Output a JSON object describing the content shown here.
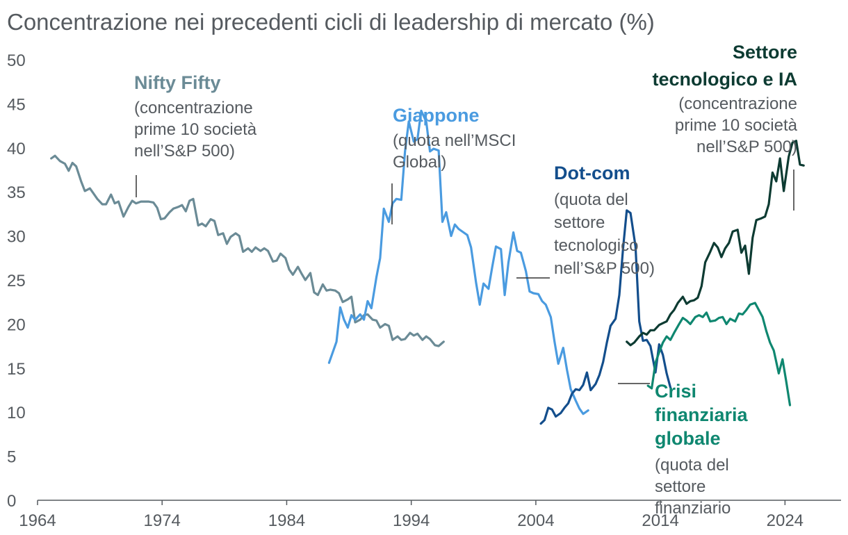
{
  "chart_data": {
    "type": "line",
    "title": "Concentrazione nei precedenti cicli di leadership di mercato (%)",
    "xlabel": "",
    "ylabel": "",
    "xlim": [
      1964,
      2028.5
    ],
    "ylim": [
      0,
      50
    ],
    "x_ticks": [
      "1964",
      "1974",
      "1984",
      "1994",
      "2004",
      "2014",
      "2024"
    ],
    "y_ticks": [
      "0",
      "5",
      "10",
      "15",
      "20",
      "25",
      "30",
      "35",
      "40",
      "45",
      "50"
    ],
    "grid": false,
    "legend": "none",
    "series": [
      {
        "key": "nifty",
        "color": "#6b8b96",
        "points": [
          [
            1965.1,
            38.8
          ],
          [
            1965.4,
            39.1
          ],
          [
            1965.8,
            38.5
          ],
          [
            1966.2,
            38.2
          ],
          [
            1966.5,
            37.4
          ],
          [
            1966.8,
            38.3
          ],
          [
            1967.1,
            37.9
          ],
          [
            1967.5,
            36.2
          ],
          [
            1967.8,
            35.1
          ],
          [
            1968.2,
            35.4
          ],
          [
            1968.5,
            34.8
          ],
          [
            1968.8,
            34.2
          ],
          [
            1969.2,
            33.6
          ],
          [
            1969.5,
            33.6
          ],
          [
            1969.9,
            34.7
          ],
          [
            1970.2,
            33.7
          ],
          [
            1970.5,
            33.9
          ],
          [
            1970.9,
            32.2
          ],
          [
            1971.3,
            33.3
          ],
          [
            1971.6,
            34.0
          ],
          [
            1971.9,
            33.7
          ],
          [
            1972.3,
            33.9
          ],
          [
            1972.6,
            33.9
          ],
          [
            1972.9,
            33.9
          ],
          [
            1973.3,
            33.8
          ],
          [
            1973.6,
            33.2
          ],
          [
            1973.9,
            31.9
          ],
          [
            1974.2,
            32.0
          ],
          [
            1974.6,
            32.7
          ],
          [
            1974.9,
            33.1
          ],
          [
            1975.3,
            33.3
          ],
          [
            1975.6,
            33.5
          ],
          [
            1975.9,
            32.8
          ],
          [
            1976.2,
            34.0
          ],
          [
            1976.5,
            34.2
          ],
          [
            1976.9,
            31.2
          ],
          [
            1977.2,
            31.4
          ],
          [
            1977.5,
            31.1
          ],
          [
            1977.9,
            31.9
          ],
          [
            1978.2,
            31.7
          ],
          [
            1978.5,
            30.1
          ],
          [
            1978.9,
            30.3
          ],
          [
            1979.2,
            29.1
          ],
          [
            1979.5,
            29.9
          ],
          [
            1979.9,
            30.3
          ],
          [
            1980.2,
            30.0
          ],
          [
            1980.5,
            28.2
          ],
          [
            1980.9,
            28.6
          ],
          [
            1981.2,
            28.2
          ],
          [
            1981.5,
            28.7
          ],
          [
            1981.9,
            28.3
          ],
          [
            1982.2,
            28.6
          ],
          [
            1982.5,
            28.3
          ],
          [
            1982.9,
            27.1
          ],
          [
            1983.2,
            27.2
          ],
          [
            1983.5,
            28.0
          ],
          [
            1983.9,
            27.5
          ],
          [
            1984.2,
            26.2
          ],
          [
            1984.5,
            25.6
          ],
          [
            1984.9,
            26.5
          ],
          [
            1985.2,
            25.7
          ],
          [
            1985.5,
            25.0
          ],
          [
            1985.9,
            25.8
          ],
          [
            1986.2,
            23.6
          ],
          [
            1986.5,
            23.3
          ],
          [
            1986.9,
            24.5
          ],
          [
            1987.2,
            23.8
          ],
          [
            1987.5,
            23.9
          ],
          [
            1987.9,
            23.8
          ],
          [
            1988.2,
            23.5
          ],
          [
            1988.5,
            22.5
          ],
          [
            1988.9,
            22.8
          ],
          [
            1989.2,
            23.1
          ],
          [
            1989.5,
            20.2
          ],
          [
            1989.9,
            20.5
          ],
          [
            1990.2,
            21.0
          ],
          [
            1990.5,
            21.1
          ],
          [
            1990.9,
            20.5
          ],
          [
            1991.2,
            20.4
          ],
          [
            1991.5,
            19.6
          ],
          [
            1991.9,
            20.0
          ],
          [
            1992.2,
            19.8
          ],
          [
            1992.5,
            18.2
          ],
          [
            1992.9,
            18.6
          ],
          [
            1993.2,
            18.2
          ],
          [
            1993.5,
            18.3
          ],
          [
            1993.9,
            19.0
          ],
          [
            1994.2,
            18.7
          ],
          [
            1994.5,
            18.9
          ],
          [
            1994.9,
            18.2
          ],
          [
            1995.2,
            18.6
          ],
          [
            1995.5,
            18.3
          ],
          [
            1995.9,
            17.6
          ],
          [
            1996.2,
            17.5
          ],
          [
            1996.6,
            18.0
          ]
        ]
      },
      {
        "key": "giappone",
        "color": "#4a9be0",
        "points": [
          [
            1987.4,
            15.6
          ],
          [
            1988.0,
            18.0
          ],
          [
            1988.3,
            21.9
          ],
          [
            1988.6,
            20.5
          ],
          [
            1988.9,
            19.6
          ],
          [
            1989.2,
            21.0
          ],
          [
            1989.5,
            20.5
          ],
          [
            1989.9,
            21.1
          ],
          [
            1990.2,
            20.5
          ],
          [
            1990.5,
            22.6
          ],
          [
            1990.8,
            21.8
          ],
          [
            1991.2,
            25.3
          ],
          [
            1991.5,
            27.5
          ],
          [
            1991.8,
            33.1
          ],
          [
            1992.2,
            31.6
          ],
          [
            1992.5,
            33.7
          ],
          [
            1992.8,
            34.2
          ],
          [
            1993.2,
            34.1
          ],
          [
            1993.5,
            39.6
          ],
          [
            1993.8,
            43.0
          ],
          [
            1994.2,
            40.7
          ],
          [
            1994.5,
            41.0
          ],
          [
            1994.8,
            44.2
          ],
          [
            1995.2,
            43.0
          ],
          [
            1995.5,
            39.6
          ],
          [
            1995.8,
            39.9
          ],
          [
            1996.2,
            39.7
          ],
          [
            1996.5,
            31.6
          ],
          [
            1996.8,
            32.7
          ],
          [
            1997.2,
            30.0
          ],
          [
            1997.5,
            31.3
          ],
          [
            1997.8,
            30.8
          ],
          [
            1998.2,
            30.4
          ],
          [
            1998.5,
            30.1
          ],
          [
            1998.8,
            28.7
          ],
          [
            1999.2,
            24.7
          ],
          [
            1999.5,
            22.2
          ],
          [
            1999.8,
            24.6
          ],
          [
            2000.2,
            24.0
          ],
          [
            2000.5,
            26.5
          ],
          [
            2000.8,
            28.8
          ],
          [
            2001.2,
            28.5
          ],
          [
            2001.5,
            23.3
          ],
          [
            2001.8,
            27.0
          ],
          [
            2002.2,
            30.4
          ],
          [
            2002.5,
            28.3
          ],
          [
            2002.8,
            28.1
          ],
          [
            2003.2,
            26.0
          ],
          [
            2003.5,
            23.7
          ],
          [
            2003.8,
            23.5
          ],
          [
            2004.2,
            23.4
          ],
          [
            2004.5,
            22.6
          ],
          [
            2004.8,
            22.2
          ],
          [
            2005.2,
            20.8
          ],
          [
            2005.5,
            18.0
          ],
          [
            2005.8,
            15.5
          ],
          [
            2006.2,
            17.3
          ],
          [
            2006.5,
            14.8
          ],
          [
            2006.8,
            12.6
          ],
          [
            2007.2,
            11.3
          ],
          [
            2007.5,
            10.4
          ],
          [
            2007.8,
            9.8
          ],
          [
            2008.2,
            10.2
          ]
        ]
      },
      {
        "key": "dotcom",
        "color": "#134e8c",
        "points": [
          [
            2004.4,
            8.7
          ],
          [
            2004.7,
            9.1
          ],
          [
            2005.0,
            10.5
          ],
          [
            2005.3,
            10.3
          ],
          [
            2005.6,
            9.5
          ],
          [
            2006.0,
            9.9
          ],
          [
            2006.3,
            10.5
          ],
          [
            2006.6,
            11.0
          ],
          [
            2006.9,
            12.1
          ],
          [
            2007.2,
            12.6
          ],
          [
            2007.5,
            12.5
          ],
          [
            2007.8,
            13.1
          ],
          [
            2008.1,
            14.5
          ],
          [
            2008.4,
            12.5
          ],
          [
            2008.8,
            13.2
          ],
          [
            2009.1,
            14.2
          ],
          [
            2009.4,
            15.7
          ],
          [
            2009.7,
            17.9
          ],
          [
            2010.0,
            19.8
          ],
          [
            2010.4,
            20.6
          ],
          [
            2010.7,
            23.3
          ],
          [
            2011.0,
            28.6
          ],
          [
            2011.3,
            32.9
          ],
          [
            2011.6,
            32.6
          ],
          [
            2012.0,
            28.8
          ],
          [
            2012.3,
            20.3
          ],
          [
            2012.6,
            18.1
          ],
          [
            2012.9,
            18.2
          ],
          [
            2013.2,
            17.5
          ],
          [
            2013.6,
            14.5
          ],
          [
            2013.9,
            17.7
          ],
          [
            2014.2,
            16.5
          ],
          [
            2014.5,
            14.4
          ],
          [
            2014.8,
            12.8
          ]
        ]
      },
      {
        "key": "crisi",
        "color": "#0f8770",
        "points": [
          [
            2013.0,
            13.0
          ],
          [
            2013.3,
            12.7
          ],
          [
            2013.6,
            15.6
          ],
          [
            2013.9,
            16.8
          ],
          [
            2014.2,
            17.9
          ],
          [
            2014.5,
            18.6
          ],
          [
            2014.8,
            18.2
          ],
          [
            2015.1,
            19.0
          ],
          [
            2015.5,
            20.0
          ],
          [
            2015.8,
            20.7
          ],
          [
            2016.1,
            20.4
          ],
          [
            2016.4,
            20.0
          ],
          [
            2016.8,
            20.8
          ],
          [
            2017.1,
            21.0
          ],
          [
            2017.4,
            20.8
          ],
          [
            2017.7,
            21.3
          ],
          [
            2018.0,
            20.3
          ],
          [
            2018.4,
            20.4
          ],
          [
            2018.7,
            20.7
          ],
          [
            2019.0,
            20.8
          ],
          [
            2019.3,
            20.0
          ],
          [
            2019.6,
            20.6
          ],
          [
            2020.0,
            20.3
          ],
          [
            2020.3,
            21.2
          ],
          [
            2020.6,
            21.1
          ],
          [
            2020.9,
            21.6
          ],
          [
            2021.2,
            22.2
          ],
          [
            2021.6,
            22.4
          ],
          [
            2021.9,
            21.6
          ],
          [
            2022.2,
            20.8
          ],
          [
            2022.5,
            19.2
          ],
          [
            2022.8,
            17.9
          ],
          [
            2023.1,
            17.0
          ],
          [
            2023.5,
            14.4
          ],
          [
            2023.8,
            16.0
          ],
          [
            2024.1,
            13.5
          ],
          [
            2024.4,
            10.8
          ]
        ]
      },
      {
        "key": "tech",
        "color": "#0d3b32",
        "points": [
          [
            2011.3,
            18.0
          ],
          [
            2011.6,
            17.6
          ],
          [
            2011.9,
            17.9
          ],
          [
            2012.3,
            18.6
          ],
          [
            2012.6,
            19.0
          ],
          [
            2012.9,
            18.8
          ],
          [
            2013.2,
            19.3
          ],
          [
            2013.5,
            19.3
          ],
          [
            2013.9,
            19.9
          ],
          [
            2014.2,
            20.1
          ],
          [
            2014.5,
            20.3
          ],
          [
            2014.8,
            21.1
          ],
          [
            2015.1,
            21.6
          ],
          [
            2015.4,
            22.4
          ],
          [
            2015.8,
            23.1
          ],
          [
            2016.1,
            22.3
          ],
          [
            2016.4,
            22.6
          ],
          [
            2016.7,
            22.7
          ],
          [
            2017.0,
            23.0
          ],
          [
            2017.3,
            24.3
          ],
          [
            2017.6,
            27.0
          ],
          [
            2018.0,
            28.2
          ],
          [
            2018.3,
            29.2
          ],
          [
            2018.6,
            28.7
          ],
          [
            2018.9,
            27.6
          ],
          [
            2019.2,
            28.6
          ],
          [
            2019.5,
            29.2
          ],
          [
            2019.8,
            30.5
          ],
          [
            2020.2,
            30.7
          ],
          [
            2020.5,
            28.1
          ],
          [
            2020.8,
            28.9
          ],
          [
            2021.1,
            25.7
          ],
          [
            2021.4,
            29.8
          ],
          [
            2021.7,
            31.8
          ],
          [
            2022.1,
            32.0
          ],
          [
            2022.4,
            32.2
          ],
          [
            2022.7,
            33.6
          ],
          [
            2023.0,
            37.2
          ],
          [
            2023.3,
            36.2
          ],
          [
            2023.6,
            38.8
          ],
          [
            2023.9,
            35.1
          ],
          [
            2024.3,
            39.0
          ],
          [
            2024.6,
            40.6
          ],
          [
            2024.9,
            40.8
          ],
          [
            2025.2,
            38.1
          ],
          [
            2025.5,
            38.0
          ]
        ]
      }
    ],
    "annotations": [
      {
        "key": "nifty",
        "name": "Nifty Fifty",
        "note": [
          "(concentrazione",
          "prime 10 società",
          "nell’S&P 500)"
        ]
      },
      {
        "key": "giappone",
        "name": "Giappone",
        "note": [
          "(quota nell’MSCI",
          "Global)"
        ]
      },
      {
        "key": "dotcom",
        "name": "Dot-com",
        "note": [
          "(quota del",
          "settore",
          "tecnologico",
          "nell’S&P 500)"
        ]
      },
      {
        "key": "crisi",
        "name": [
          "Crisi",
          "finanziaria",
          "globale"
        ],
        "note": [
          "(quota del",
          "settore",
          "finanziario"
        ]
      },
      {
        "key": "tech",
        "name": [
          "Settore",
          "tecnologico e IA"
        ],
        "note": [
          "(concentrazione",
          "prime 10 società",
          "nell’S&P 500)"
        ]
      }
    ]
  }
}
